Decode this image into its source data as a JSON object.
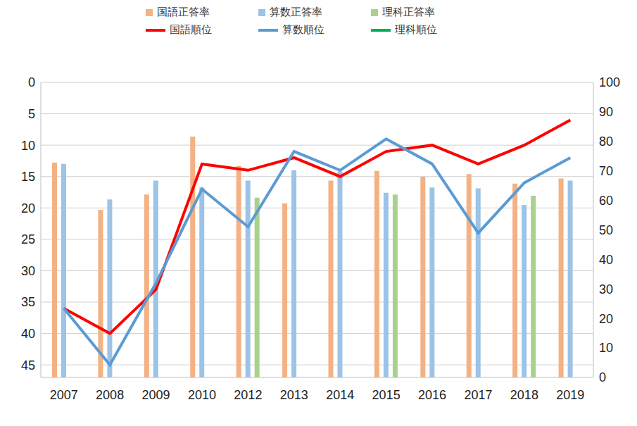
{
  "chart_data": {
    "type": "bar",
    "categories": [
      "2007",
      "2008",
      "2009",
      "2010",
      "2012",
      "2013",
      "2014",
      "2015",
      "2016",
      "2017",
      "2018",
      "2019"
    ],
    "series": [
      {
        "name": "国語正答率",
        "type": "bar",
        "axis": "y2",
        "color": "#f4b183",
        "values": [
          72.8,
          56.8,
          62.0,
          81.6,
          71.7,
          59.0,
          66.7,
          70.0,
          68.0,
          68.9,
          65.7,
          67.4
        ]
      },
      {
        "name": "算数正答率",
        "type": "bar",
        "axis": "y2",
        "color": "#9dc3e6",
        "values": [
          72.4,
          60.3,
          66.7,
          64.4,
          66.7,
          70.2,
          69.8,
          62.6,
          64.4,
          64.1,
          58.5,
          66.7
        ]
      },
      {
        "name": "理科正答率",
        "type": "bar",
        "axis": "y2",
        "color": "#a9d18e",
        "values": [
          null,
          null,
          null,
          null,
          60.9,
          null,
          null,
          62.0,
          null,
          null,
          61.6,
          null
        ]
      },
      {
        "name": "国語順位",
        "type": "line",
        "color": "#ff0000",
        "values": [
          36,
          40,
          33,
          13,
          14,
          12,
          15,
          11,
          10,
          13,
          10,
          6
        ]
      },
      {
        "name": "算数順位",
        "type": "line",
        "color": "#5b9bd5",
        "values": [
          36,
          45,
          32,
          17,
          23,
          11,
          14,
          9,
          13,
          24,
          16,
          12
        ]
      },
      {
        "name": "理科順位",
        "type": "line",
        "color": "#00b050",
        "values": [
          null,
          null,
          null,
          null,
          null,
          null,
          null,
          null,
          null,
          null,
          null,
          null
        ]
      }
    ],
    "ylim": [
      47,
      0
    ],
    "yticks": [
      0,
      5,
      10,
      15,
      20,
      25,
      30,
      35,
      40,
      45
    ],
    "y2lim": [
      0,
      100
    ],
    "y2ticks": [
      0,
      10,
      20,
      30,
      40,
      50,
      60,
      70,
      80,
      90,
      100
    ],
    "grid": true,
    "legend": "top"
  }
}
